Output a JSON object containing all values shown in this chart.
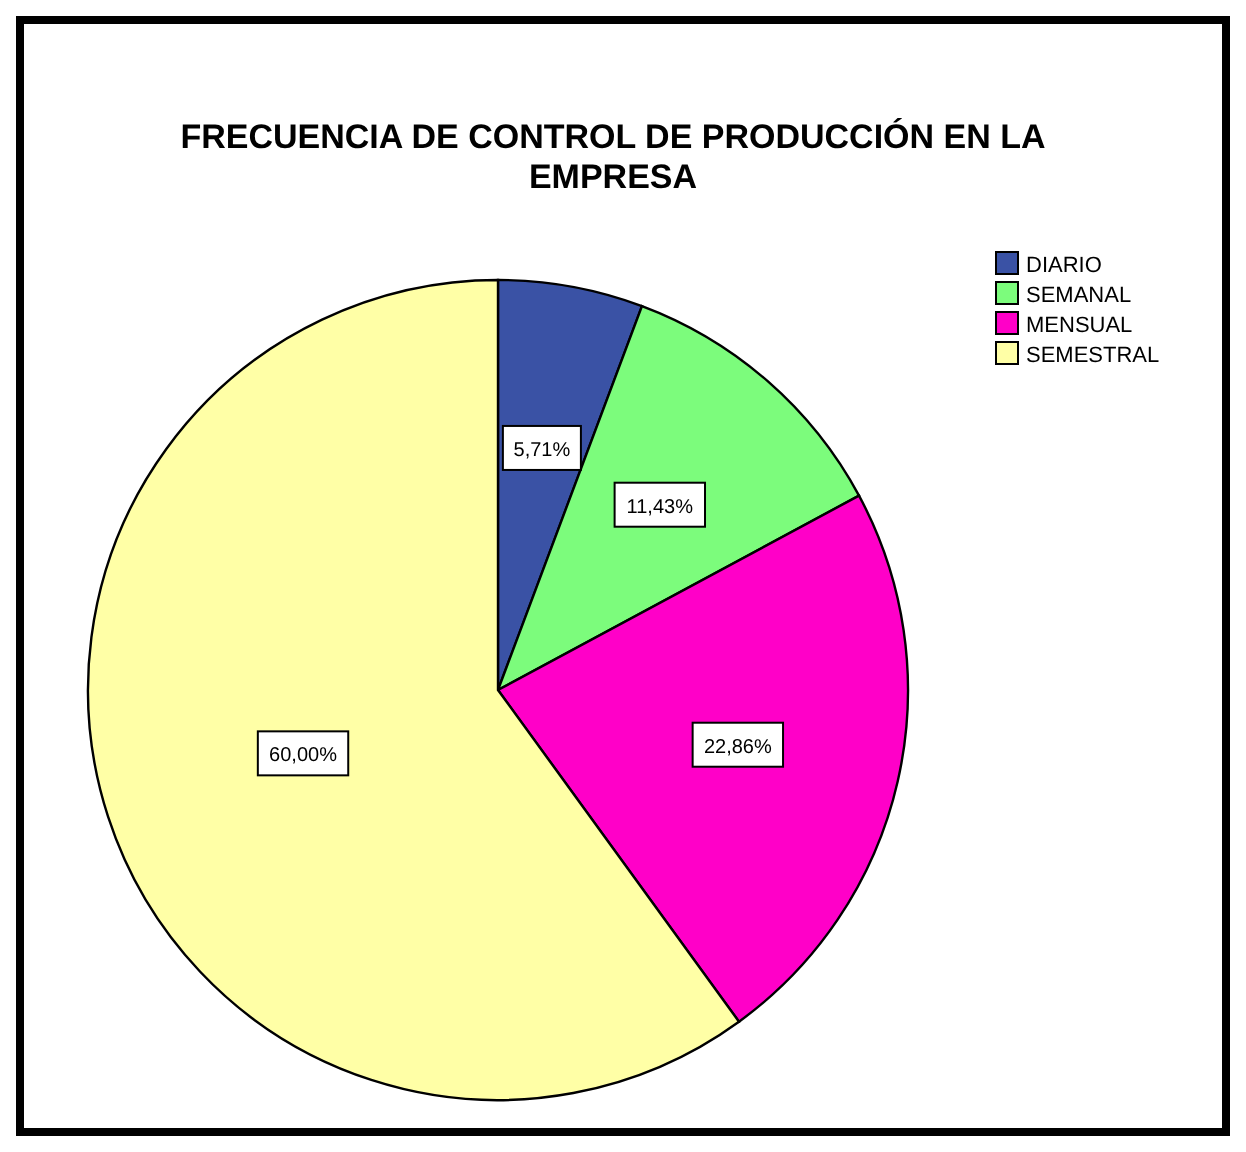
{
  "chart_data": {
    "type": "pie",
    "title": "FRECUENCIA DE CONTROL DE PRODUCCIÓN EN LA EMPRESA",
    "categories": [
      "DIARIO",
      "SEMANAL",
      "MENSUAL",
      "SEMESTRAL"
    ],
    "values": [
      5.71,
      11.43,
      22.86,
      60.0
    ],
    "colors": [
      "#3a52a5",
      "#7cfc7c",
      "#ff00c8",
      "#ffffa6"
    ],
    "value_labels": [
      "5,71%",
      "11,43%",
      "22,86%",
      "60,00%"
    ],
    "legend": "top right"
  }
}
